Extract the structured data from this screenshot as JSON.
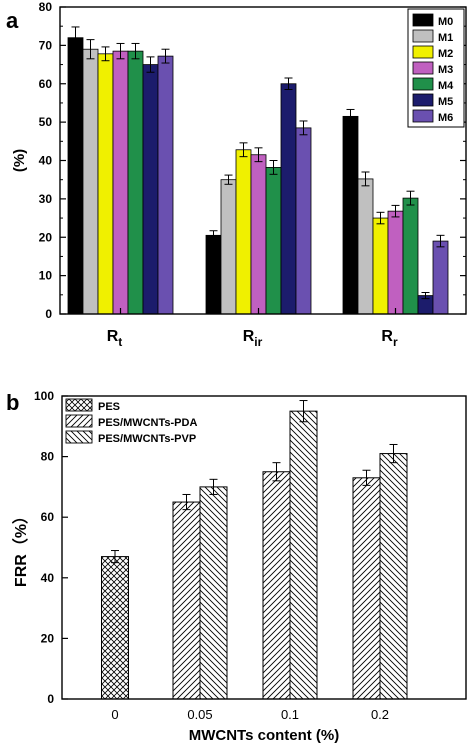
{
  "chart_data": [
    {
      "panel": "a",
      "type": "bar",
      "ylabel": "(%)",
      "ylim": [
        0,
        80
      ],
      "yticks": [
        0,
        10,
        20,
        30,
        40,
        50,
        60,
        70,
        80
      ],
      "categories": [
        {
          "main": "R",
          "sub": "t"
        },
        {
          "main": "R",
          "sub": "ir"
        },
        {
          "main": "R",
          "sub": "r"
        }
      ],
      "legend_position": "top-right",
      "series": [
        {
          "name": "M0",
          "color": "#000000",
          "values": [
            72.0,
            20.5,
            51.5
          ],
          "errors": [
            2.8,
            1.2,
            1.8
          ]
        },
        {
          "name": "M1",
          "color": "#c0c0c0",
          "values": [
            69.0,
            35.0,
            35.2
          ],
          "errors": [
            2.5,
            1.2,
            1.8
          ]
        },
        {
          "name": "M2",
          "color": "#f0f000",
          "values": [
            67.8,
            42.8,
            25.0
          ],
          "errors": [
            1.8,
            1.8,
            1.5
          ]
        },
        {
          "name": "M3",
          "color": "#c060c0",
          "values": [
            68.5,
            41.5,
            26.8
          ],
          "errors": [
            2.0,
            1.8,
            1.5
          ]
        },
        {
          "name": "M4",
          "color": "#20904a",
          "values": [
            68.5,
            38.2,
            30.2
          ],
          "errors": [
            2.0,
            1.8,
            1.8
          ]
        },
        {
          "name": "M5",
          "color": "#1c1c6c",
          "values": [
            65.0,
            60.0,
            4.8
          ],
          "errors": [
            2.0,
            1.5,
            0.8
          ]
        },
        {
          "name": "M6",
          "color": "#6a50b0",
          "values": [
            67.2,
            48.5,
            19.0
          ],
          "errors": [
            1.8,
            1.8,
            1.5
          ]
        }
      ]
    },
    {
      "panel": "b",
      "type": "bar",
      "ylabel": "FRR（%）",
      "xlabel": "MWCNTs content (%)",
      "ylim": [
        0,
        100
      ],
      "yticks": [
        0,
        20,
        40,
        60,
        80,
        100
      ],
      "categories": [
        "0",
        "0.05",
        "0.1",
        "0.2"
      ],
      "legend_position": "top-left",
      "series": [
        {
          "name": "PES",
          "pattern": "crosshatch",
          "values": [
            47,
            null,
            null,
            null
          ],
          "errors": [
            2.0,
            null,
            null,
            null
          ]
        },
        {
          "name": "PES/MWCNTs-PDA",
          "pattern": "diag-up",
          "values": [
            null,
            65,
            75,
            73
          ],
          "errors": [
            null,
            2.5,
            3.0,
            2.5
          ]
        },
        {
          "name": "PES/MWCNTs-PVP",
          "pattern": "diag-down",
          "values": [
            null,
            70,
            95,
            81
          ],
          "errors": [
            null,
            2.5,
            3.5,
            3.0
          ]
        }
      ]
    }
  ]
}
